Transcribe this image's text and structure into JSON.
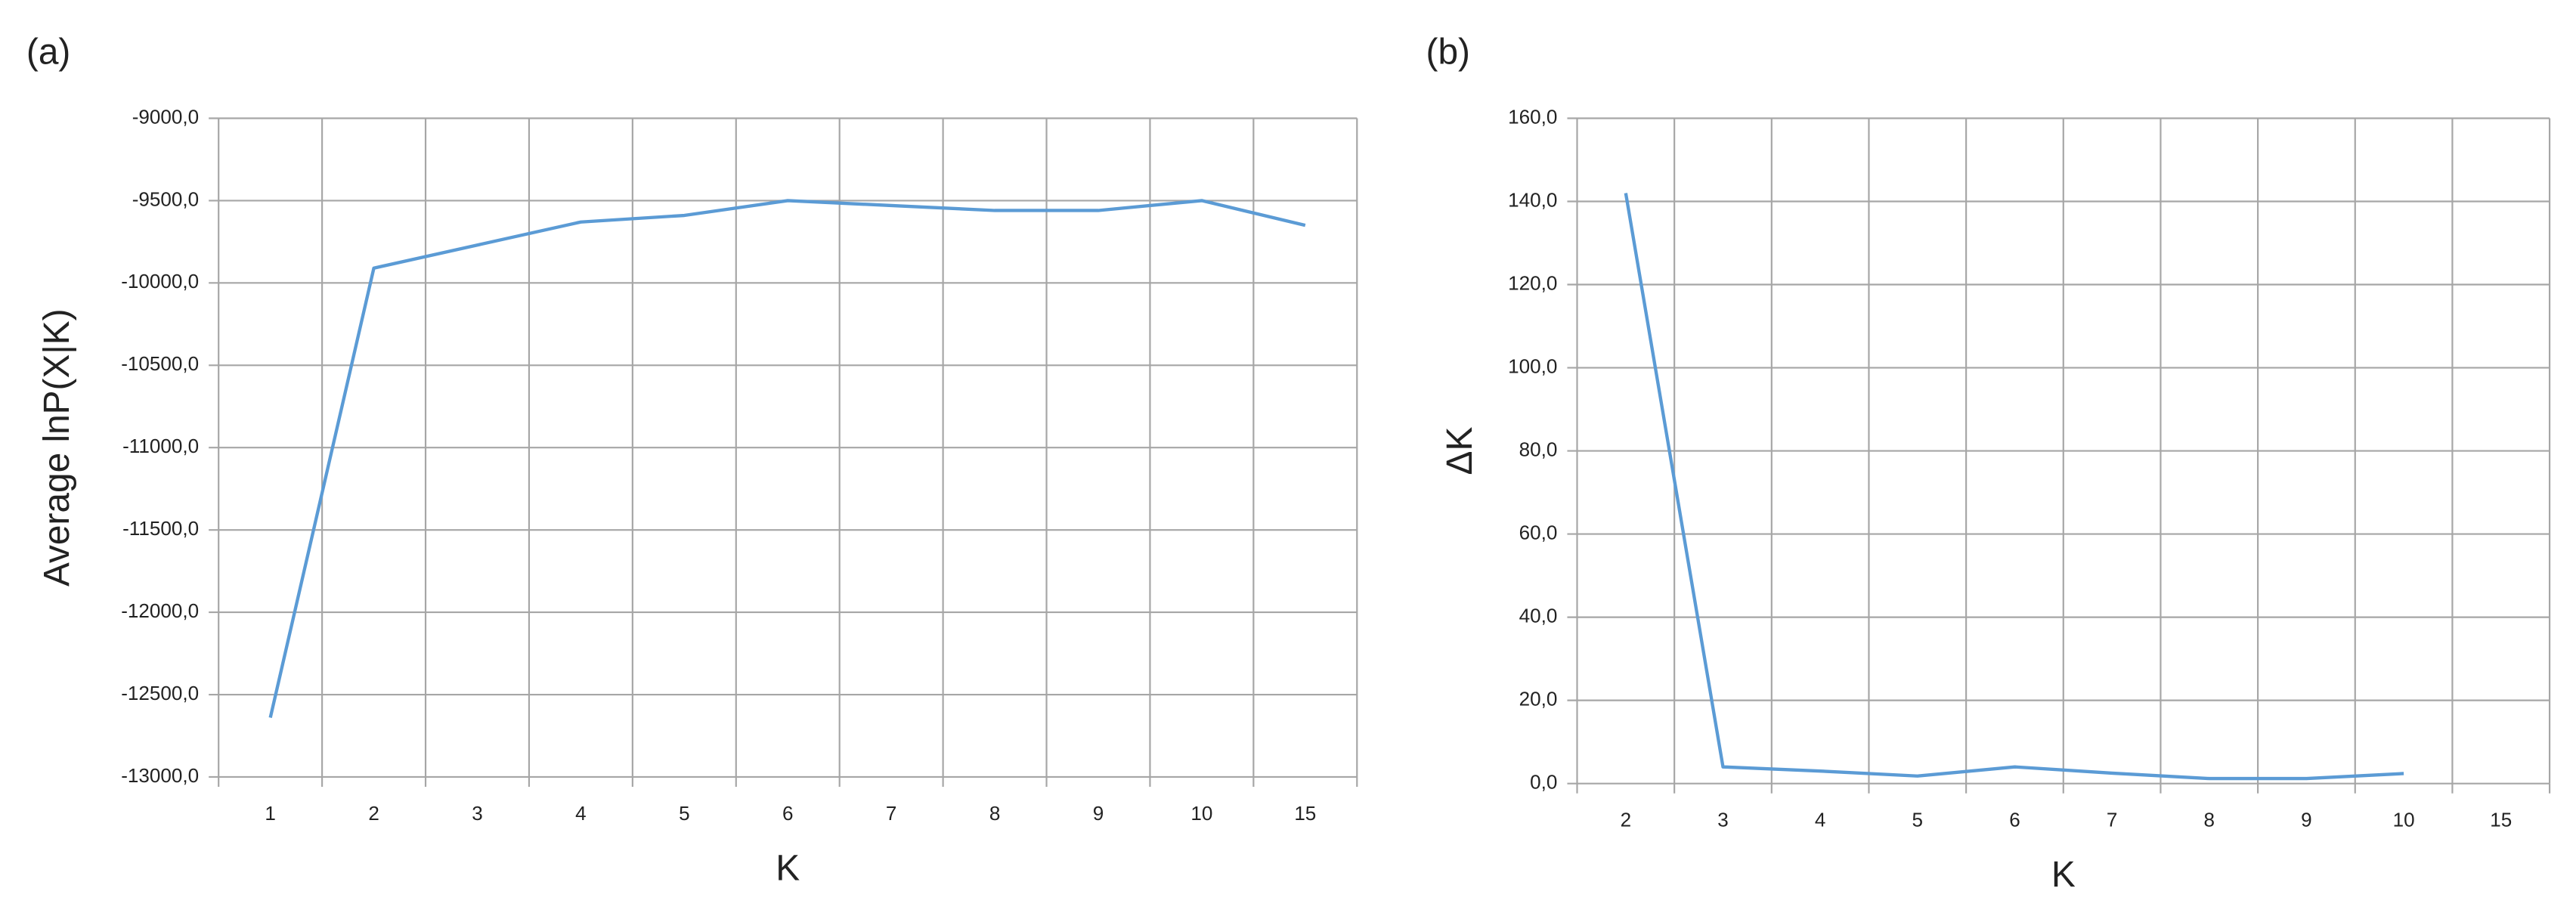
{
  "chart_data": [
    {
      "type": "line",
      "label": "(a)",
      "x_label": "K",
      "y_label": "Average lnP(X|K)",
      "categories": [
        "1",
        "2",
        "3",
        "4",
        "5",
        "6",
        "7",
        "8",
        "9",
        "10",
        "15"
      ],
      "values": [
        -12640,
        -9910,
        -9770,
        -9630,
        -9590,
        -9500,
        -9530,
        -9560,
        -9560,
        -9500,
        -9650
      ],
      "color": "#5b9bd5",
      "grid": true,
      "ylim": [
        -13000,
        -9000
      ],
      "yticks": [
        {
          "value": -13000,
          "label": "-13000,0"
        },
        {
          "value": -12500,
          "label": "-12500,0"
        },
        {
          "value": -12000,
          "label": "-12000,0"
        },
        {
          "value": -11500,
          "label": "-11500,0"
        },
        {
          "value": -11000,
          "label": "-11000,0"
        },
        {
          "value": -10500,
          "label": "-10500,0"
        },
        {
          "value": -10000,
          "label": "-10000,0"
        },
        {
          "value": -9500,
          "label": "-9500,0"
        },
        {
          "value": -9000,
          "label": "-9000,0"
        }
      ]
    },
    {
      "type": "line",
      "label": "(b)",
      "x_label": "K",
      "y_label": "ΔK",
      "categories": [
        "2",
        "3",
        "4",
        "5",
        "6",
        "7",
        "8",
        "9",
        "10",
        "15"
      ],
      "values": [
        142,
        4,
        3,
        1.8,
        4,
        2.5,
        1.2,
        1.2,
        2.4,
        null
      ],
      "color": "#5b9bd5",
      "grid": true,
      "ylim": [
        0,
        160
      ],
      "yticks": [
        {
          "value": 0,
          "label": "0,0"
        },
        {
          "value": 20,
          "label": "20,0"
        },
        {
          "value": 40,
          "label": "40,0"
        },
        {
          "value": 60,
          "label": "60,0"
        },
        {
          "value": 80,
          "label": "80,0"
        },
        {
          "value": 100,
          "label": "100,0"
        },
        {
          "value": 120,
          "label": "120,0"
        },
        {
          "value": 140,
          "label": "140,0"
        },
        {
          "value": 160,
          "label": "160,0"
        }
      ]
    }
  ]
}
